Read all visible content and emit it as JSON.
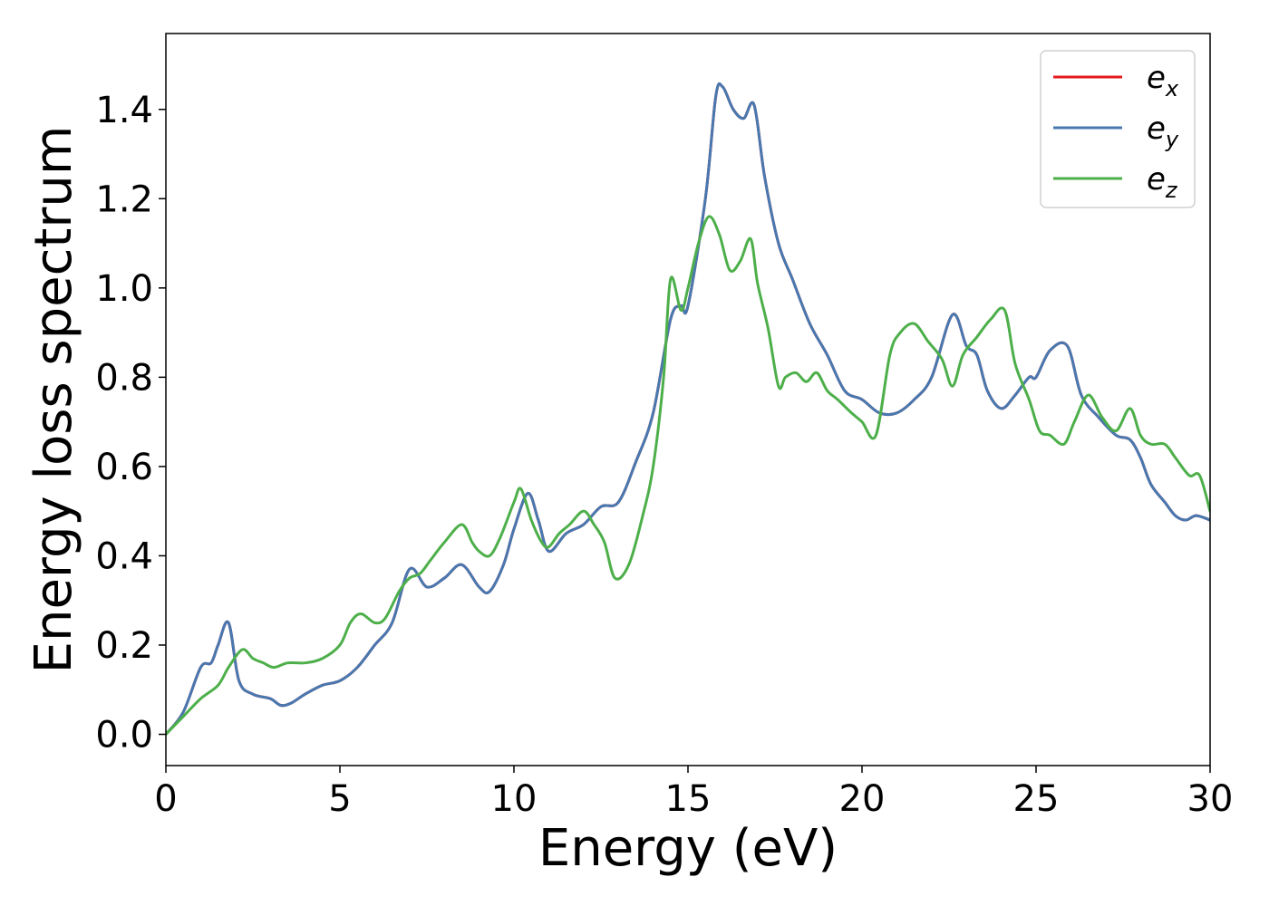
{
  "chart_data": {
    "type": "line",
    "title": "",
    "xlabel": "Energy (eV)",
    "ylabel": "Energy loss spectrum",
    "xlim": [
      0,
      30
    ],
    "ylim": [
      -0.07,
      1.57
    ],
    "xticks": [
      0,
      5,
      10,
      15,
      20,
      25,
      30
    ],
    "yticks": [
      0.0,
      0.2,
      0.4,
      0.6,
      0.8,
      1.0,
      1.2,
      1.4
    ],
    "xtick_labels": [
      "0",
      "5",
      "10",
      "15",
      "20",
      "25",
      "30"
    ],
    "ytick_labels": [
      "0.0",
      "0.2",
      "0.4",
      "0.6",
      "0.8",
      "1.0",
      "1.2",
      "1.4"
    ],
    "grid": false,
    "legend_position": "top-right",
    "series": [
      {
        "name": "e",
        "subscript": "x",
        "color": "#e41a1c",
        "x": [
          0,
          0.5,
          1.0,
          1.3,
          1.5,
          1.8,
          2.1,
          2.5,
          3.0,
          3.3,
          3.6,
          4.0,
          4.5,
          5.0,
          5.5,
          6.0,
          6.5,
          7.0,
          7.5,
          8.0,
          8.5,
          9.0,
          9.3,
          9.7,
          10.0,
          10.4,
          10.7,
          11.0,
          11.5,
          12.0,
          12.5,
          13.0,
          13.5,
          14.0,
          14.5,
          14.8,
          15.0,
          15.5,
          15.8,
          16.0,
          16.3,
          16.6,
          16.9,
          17.2,
          17.6,
          18.0,
          18.5,
          19.0,
          19.5,
          20.0,
          20.5,
          21.0,
          21.5,
          22.0,
          22.6,
          23.0,
          23.3,
          23.6,
          24.0,
          24.4,
          24.8,
          25.0,
          25.4,
          25.9,
          26.3,
          26.8,
          27.3,
          27.7,
          28.0,
          28.3,
          28.7,
          29.0,
          29.3,
          29.6,
          30.0
        ],
        "values": [
          0.0,
          0.05,
          0.15,
          0.16,
          0.2,
          0.25,
          0.12,
          0.09,
          0.08,
          0.065,
          0.07,
          0.09,
          0.11,
          0.12,
          0.15,
          0.2,
          0.25,
          0.37,
          0.33,
          0.35,
          0.38,
          0.33,
          0.32,
          0.38,
          0.46,
          0.54,
          0.48,
          0.41,
          0.45,
          0.47,
          0.51,
          0.52,
          0.61,
          0.72,
          0.93,
          0.96,
          0.96,
          1.2,
          1.43,
          1.45,
          1.4,
          1.38,
          1.41,
          1.25,
          1.1,
          1.02,
          0.92,
          0.85,
          0.77,
          0.75,
          0.72,
          0.72,
          0.75,
          0.8,
          0.94,
          0.87,
          0.85,
          0.77,
          0.73,
          0.76,
          0.8,
          0.8,
          0.86,
          0.87,
          0.76,
          0.71,
          0.67,
          0.66,
          0.62,
          0.56,
          0.52,
          0.49,
          0.48,
          0.49,
          0.48
        ]
      },
      {
        "name": "e",
        "subscript": "y",
        "color": "#4878b0",
        "x": [
          0,
          0.5,
          1.0,
          1.3,
          1.5,
          1.8,
          2.1,
          2.5,
          3.0,
          3.3,
          3.6,
          4.0,
          4.5,
          5.0,
          5.5,
          6.0,
          6.5,
          7.0,
          7.5,
          8.0,
          8.5,
          9.0,
          9.3,
          9.7,
          10.0,
          10.4,
          10.7,
          11.0,
          11.5,
          12.0,
          12.5,
          13.0,
          13.5,
          14.0,
          14.5,
          14.8,
          15.0,
          15.5,
          15.8,
          16.0,
          16.3,
          16.6,
          16.9,
          17.2,
          17.6,
          18.0,
          18.5,
          19.0,
          19.5,
          20.0,
          20.5,
          21.0,
          21.5,
          22.0,
          22.6,
          23.0,
          23.3,
          23.6,
          24.0,
          24.4,
          24.8,
          25.0,
          25.4,
          25.9,
          26.3,
          26.8,
          27.3,
          27.7,
          28.0,
          28.3,
          28.7,
          29.0,
          29.3,
          29.6,
          30.0
        ],
        "values": [
          0.0,
          0.05,
          0.15,
          0.16,
          0.2,
          0.25,
          0.12,
          0.09,
          0.08,
          0.065,
          0.07,
          0.09,
          0.11,
          0.12,
          0.15,
          0.2,
          0.25,
          0.37,
          0.33,
          0.35,
          0.38,
          0.33,
          0.32,
          0.38,
          0.46,
          0.54,
          0.48,
          0.41,
          0.45,
          0.47,
          0.51,
          0.52,
          0.61,
          0.72,
          0.93,
          0.96,
          0.96,
          1.2,
          1.43,
          1.45,
          1.4,
          1.38,
          1.41,
          1.25,
          1.1,
          1.02,
          0.92,
          0.85,
          0.77,
          0.75,
          0.72,
          0.72,
          0.75,
          0.8,
          0.94,
          0.87,
          0.85,
          0.77,
          0.73,
          0.76,
          0.8,
          0.8,
          0.86,
          0.87,
          0.76,
          0.71,
          0.67,
          0.66,
          0.62,
          0.56,
          0.52,
          0.49,
          0.48,
          0.49,
          0.48
        ]
      },
      {
        "name": "e",
        "subscript": "z",
        "color": "#4daf4a",
        "x": [
          0,
          0.5,
          1.0,
          1.5,
          1.8,
          2.2,
          2.5,
          2.8,
          3.1,
          3.5,
          4.0,
          4.5,
          5.0,
          5.3,
          5.6,
          6.0,
          6.3,
          6.7,
          7.0,
          7.3,
          7.6,
          8.0,
          8.5,
          8.8,
          9.0,
          9.3,
          9.6,
          10.0,
          10.2,
          10.5,
          10.8,
          11.0,
          11.3,
          11.6,
          12.0,
          12.3,
          12.6,
          12.9,
          13.3,
          13.7,
          14.0,
          14.3,
          14.5,
          14.8,
          15.0,
          15.3,
          15.6,
          15.9,
          16.2,
          16.5,
          16.8,
          17.0,
          17.3,
          17.6,
          17.8,
          18.1,
          18.4,
          18.7,
          19.0,
          19.3,
          19.7,
          20.0,
          20.4,
          20.8,
          21.1,
          21.5,
          21.9,
          22.3,
          22.6,
          22.9,
          23.3,
          23.7,
          24.1,
          24.4,
          24.8,
          25.1,
          25.4,
          25.8,
          26.1,
          26.5,
          26.9,
          27.3,
          27.7,
          28.0,
          28.3,
          28.7,
          29.0,
          29.4,
          29.7,
          30.0
        ],
        "values": [
          0.0,
          0.04,
          0.08,
          0.11,
          0.15,
          0.19,
          0.17,
          0.16,
          0.15,
          0.16,
          0.16,
          0.17,
          0.2,
          0.25,
          0.27,
          0.25,
          0.26,
          0.32,
          0.35,
          0.36,
          0.39,
          0.43,
          0.47,
          0.43,
          0.41,
          0.4,
          0.44,
          0.52,
          0.55,
          0.48,
          0.43,
          0.42,
          0.45,
          0.47,
          0.5,
          0.47,
          0.43,
          0.35,
          0.38,
          0.49,
          0.6,
          0.8,
          1.02,
          0.95,
          1.0,
          1.1,
          1.16,
          1.12,
          1.04,
          1.06,
          1.11,
          1.01,
          0.91,
          0.78,
          0.8,
          0.81,
          0.79,
          0.81,
          0.77,
          0.75,
          0.72,
          0.7,
          0.67,
          0.85,
          0.9,
          0.92,
          0.88,
          0.84,
          0.78,
          0.85,
          0.89,
          0.93,
          0.95,
          0.83,
          0.75,
          0.68,
          0.67,
          0.65,
          0.7,
          0.76,
          0.71,
          0.68,
          0.73,
          0.67,
          0.65,
          0.65,
          0.62,
          0.58,
          0.58,
          0.5
        ]
      }
    ]
  }
}
